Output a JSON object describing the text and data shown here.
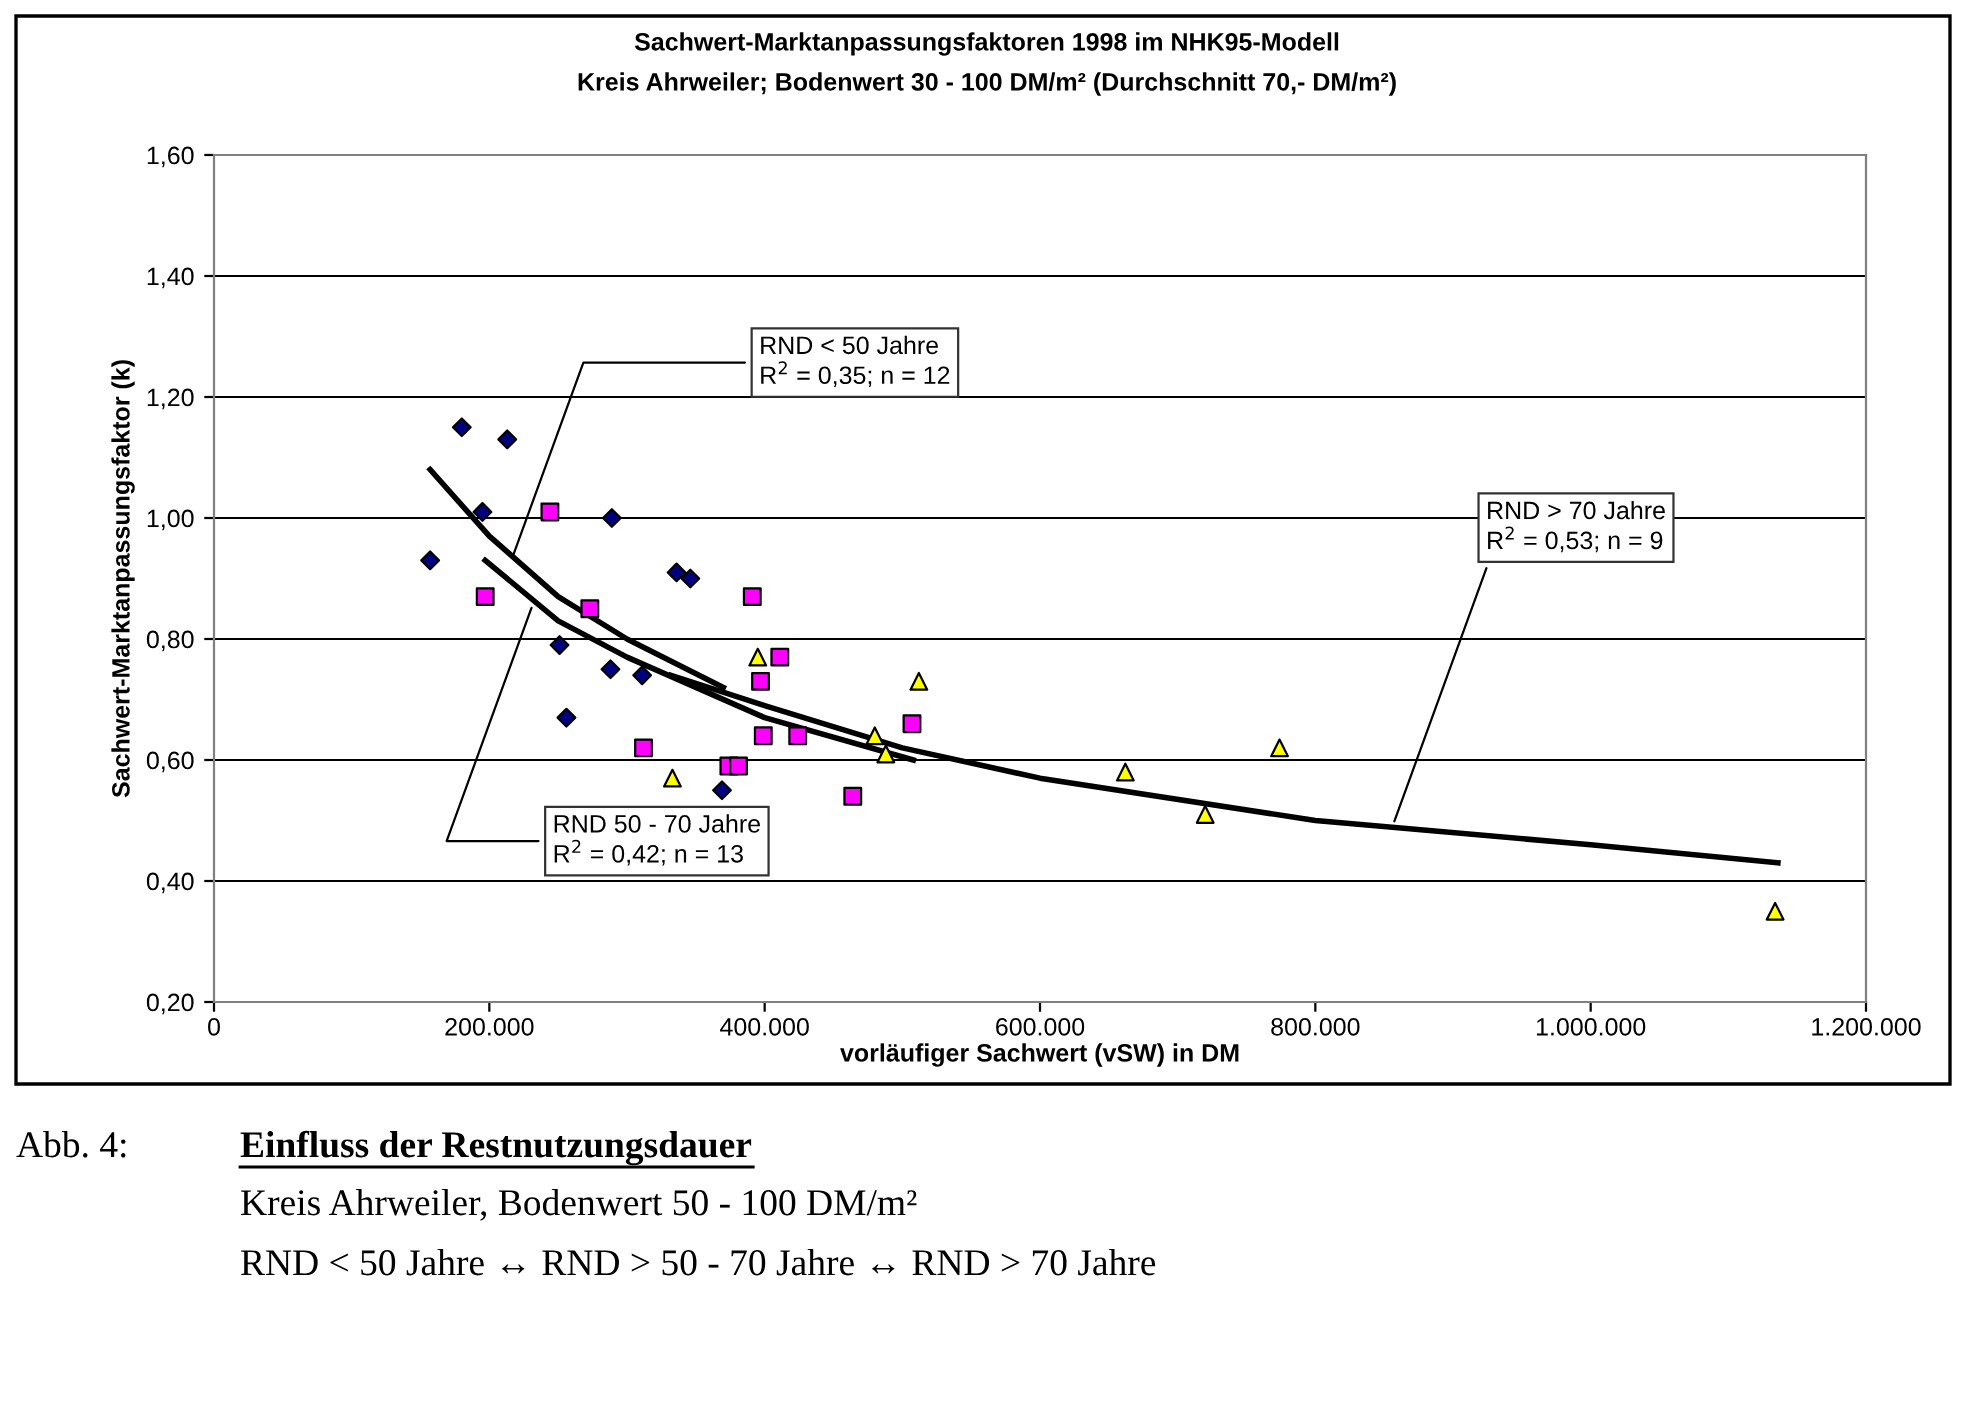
{
  "chart_data": {
    "type": "scatter",
    "title": "Sachwert-Marktanpassungsfaktoren 1998 im NHK95-Modell",
    "subtitle": "Kreis Ahrweiler; Bodenwert 30 - 100 DM/m² (Durchschnitt 70,- DM/m²)",
    "xlabel": "vorläufiger Sachwert (vSW) in DM",
    "ylabel": "Sachwert-Marktanpassungsfaktor (k)",
    "xlim": [
      0,
      1200000
    ],
    "ylim": [
      0.2,
      1.6
    ],
    "xticks": [
      0,
      {
        "value": 200000,
        "label": "200.000"
      },
      {
        "value": 400000,
        "label": "400.000"
      },
      {
        "value": 600000,
        "label": "600.000"
      },
      {
        "value": 800000,
        "label": "800.000"
      },
      {
        "value": 1000000,
        "label": "1.000.000"
      },
      {
        "value": 1200000,
        "label": "1.200.000"
      }
    ],
    "yticks": [
      {
        "value": 0.2,
        "label": "0,20"
      },
      {
        "value": 0.4,
        "label": "0,40"
      },
      {
        "value": 0.6,
        "label": "0,60"
      },
      {
        "value": 0.8,
        "label": "0,80"
      },
      {
        "value": 1.0,
        "label": "1,00"
      },
      {
        "value": 1.2,
        "label": "1,20"
      },
      {
        "value": 1.4,
        "label": "1,40"
      },
      {
        "value": 1.6,
        "label": "1,60"
      }
    ],
    "grid": "y",
    "legend": false,
    "series": [
      {
        "marker": "diamond",
        "color": "#000080",
        "x": [
          180000,
          213000,
          195000,
          289000,
          157000,
          336000,
          346000,
          251000,
          288000,
          311000,
          256000,
          369000
        ],
        "values": [
          1.15,
          1.13,
          1.01,
          1.0,
          0.93,
          0.91,
          0.9,
          0.79,
          0.75,
          0.74,
          0.67,
          0.55
        ]
      },
      {
        "marker": "square",
        "color": "#ff00ff",
        "x": [
          244000,
          197000,
          273000,
          312000,
          391000,
          411000,
          397000,
          399000,
          424000,
          374000,
          381000,
          464000,
          507000
        ],
        "values": [
          1.01,
          0.87,
          0.85,
          0.62,
          0.87,
          0.77,
          0.73,
          0.64,
          0.64,
          0.59,
          0.59,
          0.54,
          0.66
        ]
      },
      {
        "marker": "triangle",
        "color": "#ffff00",
        "x": [
          395000,
          512000,
          333000,
          480000,
          488000,
          662000,
          774000,
          720000,
          1134000
        ],
        "values": [
          0.77,
          0.73,
          0.57,
          0.64,
          0.61,
          0.58,
          0.62,
          0.51,
          0.35
        ]
      },
      {
        "type": "line",
        "marker": "none",
        "line_style": "solid",
        "color": "#000000",
        "x": [
          157000,
          200000,
          250000,
          300000,
          370000
        ],
        "values": [
          1.08,
          0.97,
          0.87,
          0.8,
          0.72
        ]
      },
      {
        "type": "line",
        "marker": "none",
        "line_style": "solid",
        "color": "#000000",
        "x": [
          197000,
          250000,
          300000,
          400000,
          508000
        ],
        "values": [
          0.93,
          0.83,
          0.77,
          0.67,
          0.6
        ]
      },
      {
        "type": "line",
        "marker": "none",
        "line_style": "solid",
        "color": "#000000",
        "x": [
          332000,
          400000,
          500000,
          600000,
          800000,
          1000000,
          1136000
        ],
        "values": [
          0.74,
          0.69,
          0.62,
          0.57,
          0.5,
          0.46,
          0.43
        ]
      }
    ],
    "annotations": [
      {
        "text": "RND < 50 Jahre\nR$^{2}$ = 0,35; n = 12",
        "x": 216000,
        "y": 0.93
      },
      {
        "text": "RND 50 - 70 Jahre\nR$^{2}$ = 0,42; n = 13",
        "x": 232000,
        "y": 0.86
      },
      {
        "text": "RND > 70 Jahre\nR$^{2}$ = 0,53; n = 9",
        "x": 856000,
        "y": 0.49
      },
      "Abb. 4:",
      "Einfluss der Restnutzungsdauer",
      "Kreis Ahrweiler, Bodenwert 50 - 100 DM/m²",
      "RND < 50 Jahre ↔ RND > 50 - 70 Jahre ↔ RND > 70 Jahre"
    ]
  }
}
